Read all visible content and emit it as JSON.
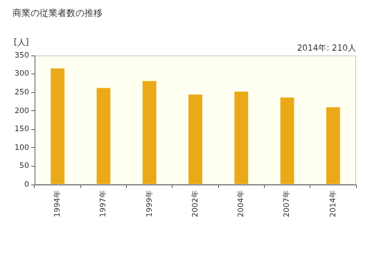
{
  "chart_data": {
    "type": "bar",
    "title": "商業の従業者数の推移",
    "ylabel": "[人]",
    "annotation": "2014年: 210人",
    "categories": [
      "1994年",
      "1997年",
      "1999年",
      "2002年",
      "2004年",
      "2007年",
      "2014年"
    ],
    "values": [
      315,
      262,
      281,
      244,
      252,
      236,
      210
    ],
    "color": "#eaaa18",
    "ylim": [
      0,
      350
    ],
    "yticks": [
      0,
      50,
      100,
      150,
      200,
      250,
      300,
      350
    ],
    "grid": false
  }
}
